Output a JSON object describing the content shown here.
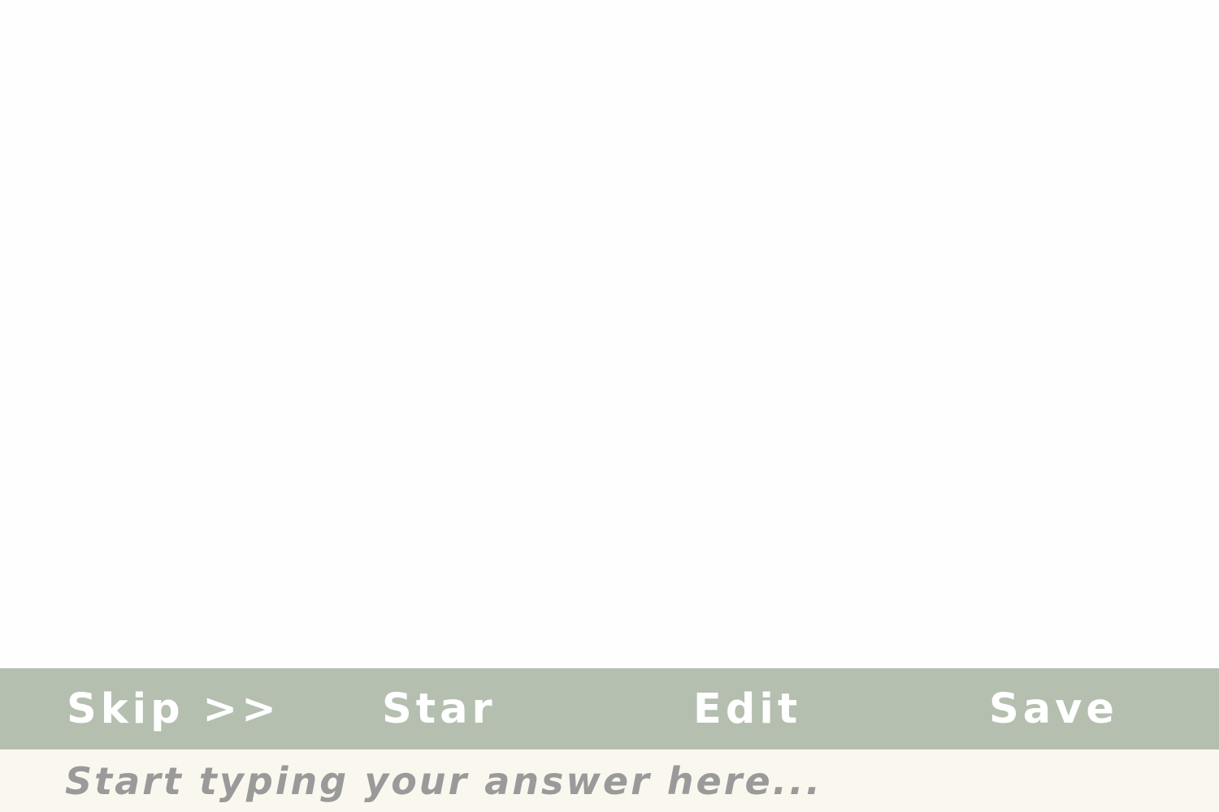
{
  "toolbar": {
    "skip_label": "Skip >>",
    "star_label": "Star",
    "edit_label": "Edit",
    "save_label": "Save"
  },
  "answer": {
    "value": "",
    "placeholder": "Start typing your answer here..."
  },
  "colors": {
    "toolbar_bg": "#b4bfb0",
    "toolbar_text": "#ffffff",
    "answer_bg": "#faf8ee",
    "placeholder_text": "#9b9a9a"
  }
}
